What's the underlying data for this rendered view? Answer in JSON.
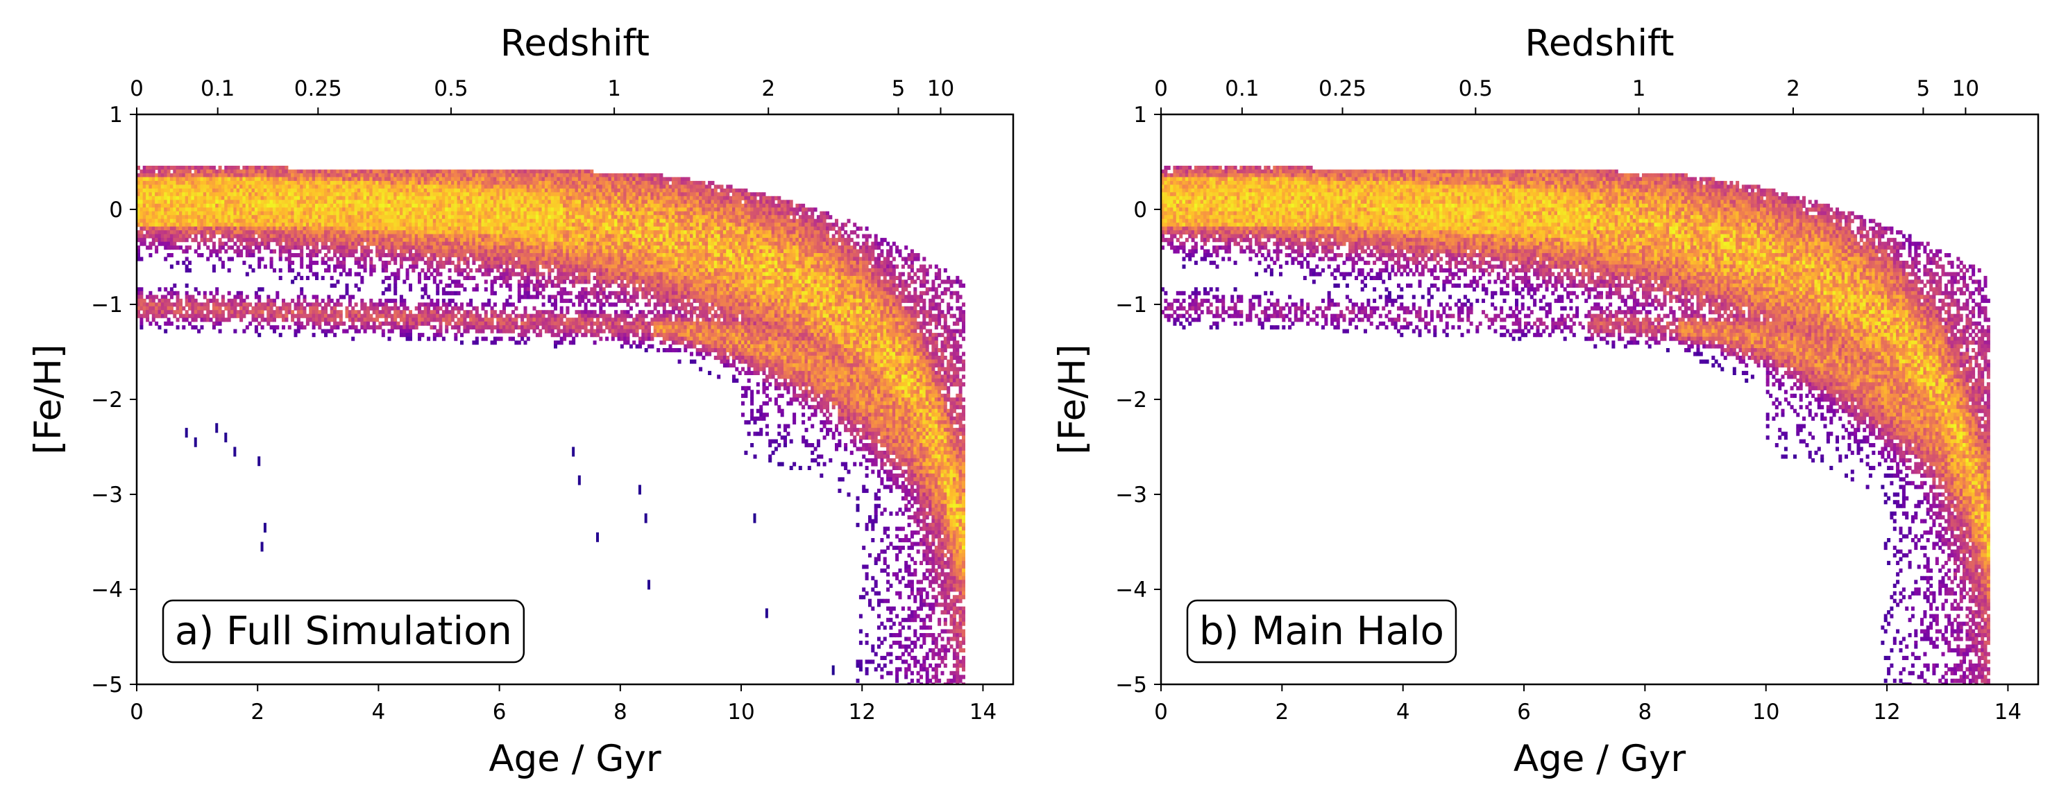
{
  "chart_data": [
    {
      "type": "heatmap",
      "panel_label": "a) Full Simulation",
      "xlabel": "Age / Gyr",
      "ylabel": "[Fe/H]",
      "top_axis_label": "Redshift",
      "xlim": [
        0,
        14.5
      ],
      "ylim": [
        -5,
        1
      ],
      "xticks": [
        0,
        2,
        4,
        6,
        8,
        10,
        12,
        14
      ],
      "yticks": [
        -5,
        -4,
        -3,
        -2,
        -1,
        0,
        1
      ],
      "redshift_ticks": [
        {
          "label": "0",
          "age": 0.0
        },
        {
          "label": "0.1",
          "age": 1.34
        },
        {
          "label": "0.25",
          "age": 3.0
        },
        {
          "label": "0.5",
          "age": 5.2
        },
        {
          "label": "1",
          "age": 7.9
        },
        {
          "label": "2",
          "age": 10.45
        },
        {
          "label": "5",
          "age": 12.6
        },
        {
          "label": "10",
          "age": 13.3
        }
      ],
      "colormap": "plasma",
      "features": {
        "upper_sequence_feh": {
          "ages": [
            0,
            2,
            4,
            6,
            8,
            9,
            10,
            11,
            12,
            12.8,
            13.3,
            13.7
          ],
          "feh": [
            0.1,
            0.1,
            0.05,
            0.0,
            -0.15,
            -0.3,
            -0.5,
            -0.75,
            -1.2,
            -1.8,
            -2.6,
            -3.5
          ]
        },
        "lower_sequence_feh": {
          "ages": [
            0,
            2,
            4,
            6,
            8,
            9,
            10,
            11,
            12,
            12.8,
            13.3
          ],
          "feh": [
            -1.0,
            -1.05,
            -1.1,
            -1.15,
            -1.2,
            -1.25,
            -1.35,
            -1.55,
            -1.9,
            -2.3,
            -2.9
          ]
        },
        "max_age": 13.7
      }
    },
    {
      "type": "heatmap",
      "panel_label": "b) Main Halo",
      "xlabel": "Age / Gyr",
      "ylabel": "[Fe/H]",
      "top_axis_label": "Redshift",
      "xlim": [
        0,
        14.5
      ],
      "ylim": [
        -5,
        1
      ],
      "xticks": [
        0,
        2,
        4,
        6,
        8,
        10,
        12,
        14
      ],
      "yticks": [
        -5,
        -4,
        -3,
        -2,
        -1,
        0,
        1
      ],
      "redshift_ticks": [
        {
          "label": "0",
          "age": 0.0
        },
        {
          "label": "0.1",
          "age": 1.34
        },
        {
          "label": "0.25",
          "age": 3.0
        },
        {
          "label": "0.5",
          "age": 5.2
        },
        {
          "label": "1",
          "age": 7.9
        },
        {
          "label": "2",
          "age": 10.45
        },
        {
          "label": "5",
          "age": 12.6
        },
        {
          "label": "10",
          "age": 13.3
        }
      ],
      "colormap": "plasma",
      "features": {
        "upper_sequence_feh": {
          "ages": [
            0,
            2,
            4,
            6,
            8,
            9,
            10,
            11,
            12,
            12.8,
            13.3,
            13.7
          ],
          "feh": [
            0.1,
            0.1,
            0.05,
            0.0,
            -0.15,
            -0.3,
            -0.5,
            -0.75,
            -1.2,
            -1.8,
            -2.6,
            -3.5
          ]
        },
        "lower_sequence_feh": {
          "ages": [
            0,
            2,
            4,
            6,
            8,
            9,
            10,
            11,
            12,
            12.8,
            13.3
          ],
          "feh": [
            -1.0,
            -1.05,
            -1.1,
            -1.15,
            -1.2,
            -1.25,
            -1.35,
            -1.55,
            -1.9,
            -2.3,
            -2.9
          ]
        },
        "max_age": 13.7
      }
    }
  ]
}
